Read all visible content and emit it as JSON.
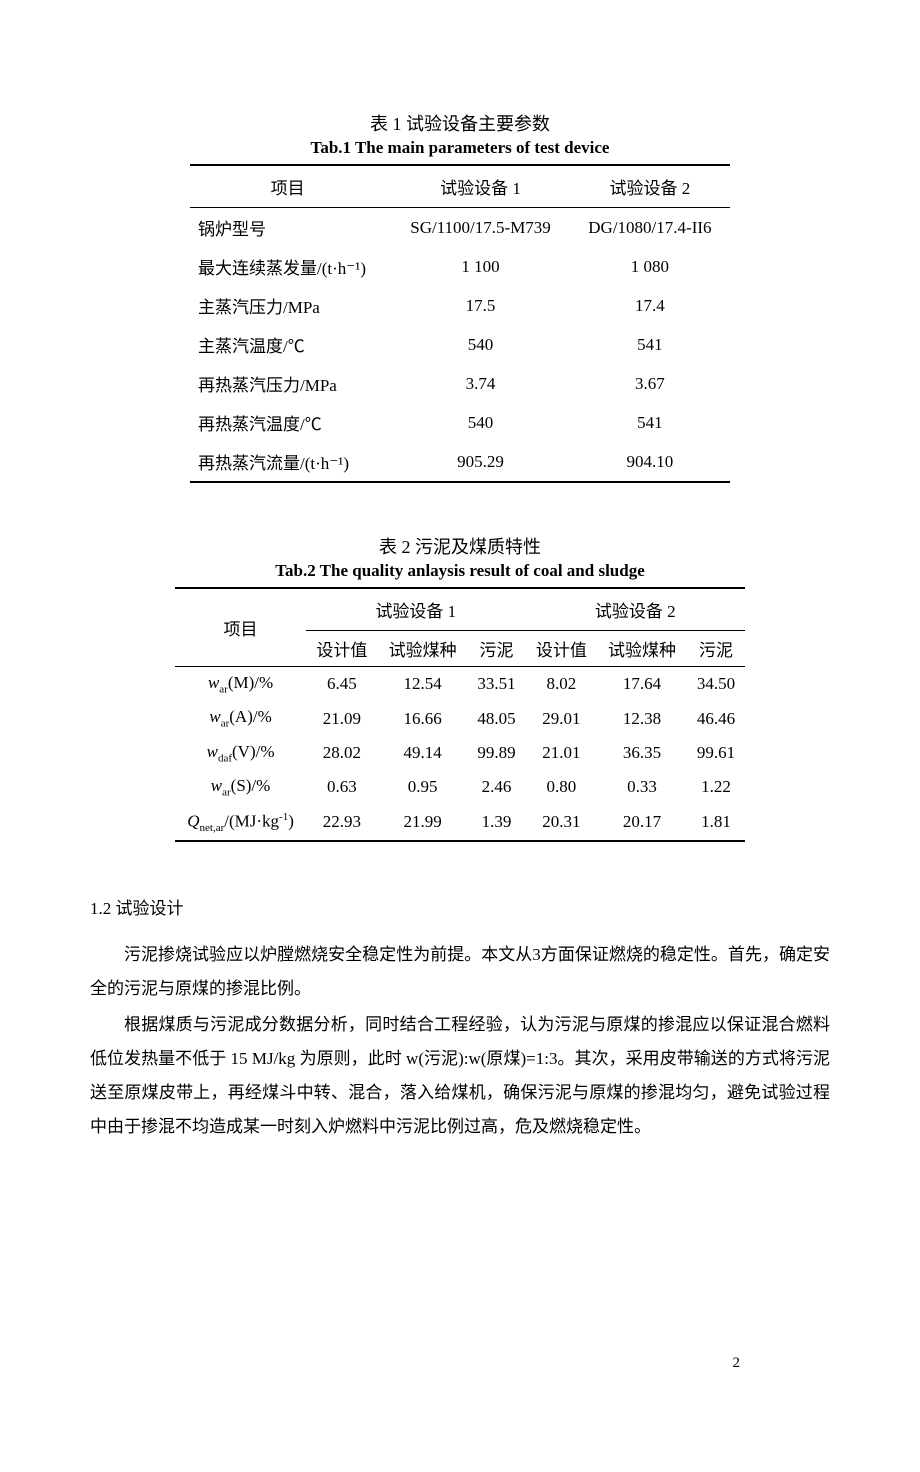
{
  "table1": {
    "title_cn": "表 1  试验设备主要参数",
    "title_en": "Tab.1 The main parameters of test device",
    "headers": [
      "项目",
      "试验设备 1",
      "试验设备 2"
    ],
    "rows": [
      [
        "锅炉型号",
        "SG/1100/17.5-M739",
        "DG/1080/17.4-II6"
      ],
      [
        "最大连续蒸发量/(t·h⁻¹)",
        "1 100",
        "1 080"
      ],
      [
        "主蒸汽压力/MPa",
        "17.5",
        "17.4"
      ],
      [
        "主蒸汽温度/℃",
        "540",
        "541"
      ],
      [
        "再热蒸汽压力/MPa",
        "3.74",
        "3.67"
      ],
      [
        "再热蒸汽温度/℃",
        "540",
        "541"
      ],
      [
        "再热蒸汽流量/(t·h⁻¹)",
        "905.29",
        "904.10"
      ]
    ]
  },
  "table2": {
    "title_cn": "表 2  污泥及煤质特性",
    "title_en": "Tab.2 The quality anlaysis result of coal and sludge",
    "col_header_main": "项目",
    "group_headers": [
      "试验设备 1",
      "试验设备 2"
    ],
    "sub_headers": [
      "设计值",
      "试验煤种",
      "污泥",
      "设计值",
      "试验煤种",
      "污泥"
    ],
    "row_labels_html": [
      "<span class='italic'>w</span><span class='sub'>ar</span>(M)/%",
      "<span class='italic'>w</span><span class='sub'>ar</span>(A)/%",
      "<span class='italic'>w</span><span class='sub'>daf</span>(V)/%",
      "<span class='italic'>w</span><span class='sub'>ar</span>(S)/%",
      "<span class='italic'>Q</span><span class='sub'>net,ar</span>/(MJ·kg<span class='sup'>-1</span>)"
    ],
    "values": [
      [
        "6.45",
        "12.54",
        "33.51",
        "8.02",
        "17.64",
        "34.50"
      ],
      [
        "21.09",
        "16.66",
        "48.05",
        "29.01",
        "12.38",
        "46.46"
      ],
      [
        "28.02",
        "49.14",
        "99.89",
        "21.01",
        "36.35",
        "99.61"
      ],
      [
        "0.63",
        "0.95",
        "2.46",
        "0.80",
        "0.33",
        "1.22"
      ],
      [
        "22.93",
        "21.99",
        "1.39",
        "20.31",
        "20.17",
        "1.81"
      ]
    ]
  },
  "body": {
    "section_heading": "1.2 试验设计",
    "p1": "污泥掺烧试验应以炉膛燃烧安全稳定性为前提。本文从3方面保证燃烧的稳定性。首先，确定安全的污泥与原煤的掺混比例。",
    "p2": "根据煤质与污泥成分数据分析，同时结合工程经验，认为污泥与原煤的掺混应以保证混合燃料低位发热量不低于 15 MJ/kg 为原则，此时 w(污泥):w(原煤)=1:3。其次，采用皮带输送的方式将污泥送至原煤皮带上，再经煤斗中转、混合，落入给煤机，确保污泥与原煤的掺混均匀，避免试验过程中由于掺混不均造成某一时刻入炉燃料中污泥比例过高，危及燃烧稳定性。"
  },
  "page_number": "2"
}
